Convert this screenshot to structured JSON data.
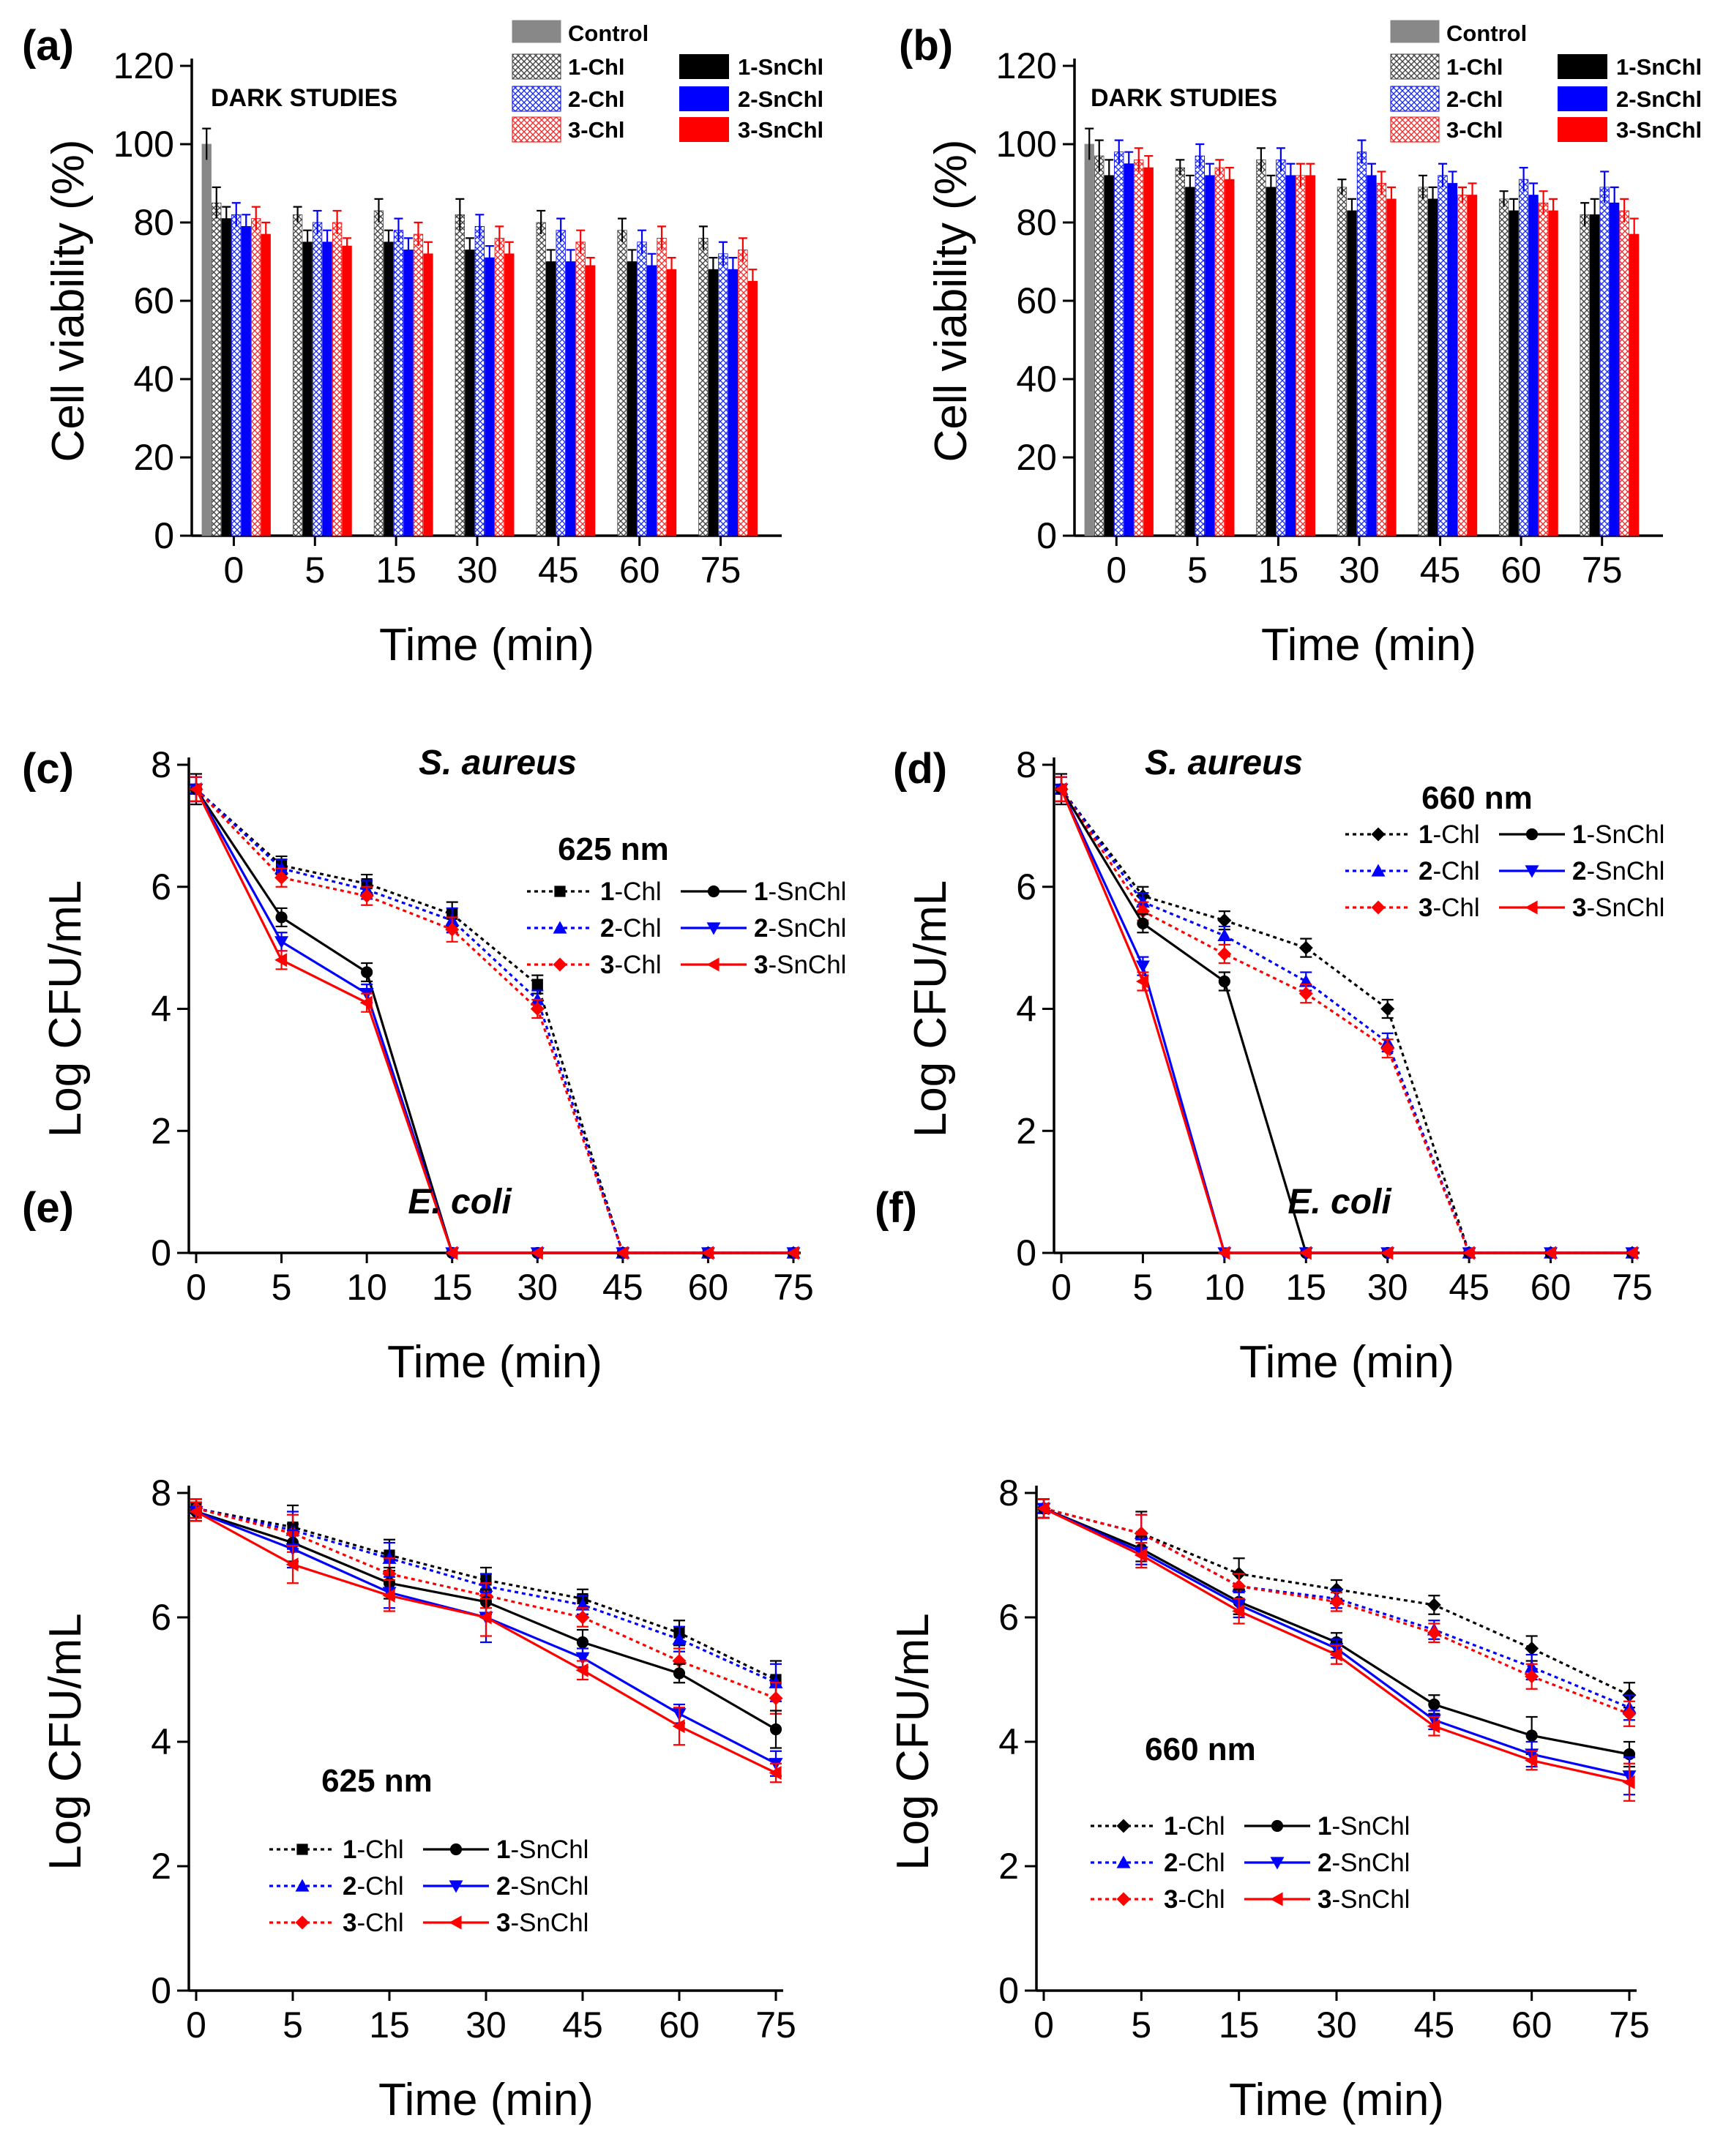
{
  "colors": {
    "control": "#888888",
    "chl1_fill": "#bdbdbd",
    "chl2_fill": "#aab0ff",
    "chl3_fill": "#ffb3b3",
    "sn1": "#000000",
    "sn2": "#0000ff",
    "sn3": "#ff0000"
  },
  "legend_labels": {
    "control": "Control",
    "chl1": "1-Chl",
    "chl2": "2-Chl",
    "chl3": "3-Chl",
    "sn1": "1-SnChl",
    "sn2": "2-SnChl",
    "sn3": "3-SnChl"
  },
  "chart_data": [
    {
      "id": "a",
      "panel_label": "(a)",
      "type": "bar",
      "annotation": "DARK STUDIES",
      "xlabel": "Time (min)",
      "ylabel": "Cell viability (%)",
      "ylim": [
        0,
        120
      ],
      "yticks": [
        0,
        20,
        40,
        60,
        80,
        100,
        120
      ],
      "categories": [
        "0",
        "5",
        "15",
        "30",
        "45",
        "60",
        "75"
      ],
      "series": [
        {
          "name": "Control",
          "key": "control",
          "values": [
            100,
            null,
            null,
            null,
            null,
            null,
            null
          ],
          "err": [
            4,
            0,
            0,
            0,
            0,
            0,
            0
          ]
        },
        {
          "name": "1-Chl",
          "key": "chl1",
          "values": [
            85,
            82,
            83,
            82,
            80,
            78,
            76
          ],
          "err": [
            4,
            2,
            3,
            4,
            3,
            3,
            3
          ]
        },
        {
          "name": "1-SnChl",
          "key": "sn1",
          "values": [
            81,
            75,
            75,
            73,
            70,
            70,
            68
          ],
          "err": [
            3,
            3,
            3,
            3,
            3,
            3,
            3
          ]
        },
        {
          "name": "2-Chl",
          "key": "chl2",
          "values": [
            82,
            80,
            78,
            79,
            78,
            75,
            72
          ],
          "err": [
            3,
            3,
            3,
            3,
            3,
            3,
            3
          ]
        },
        {
          "name": "2-SnChl",
          "key": "sn2",
          "values": [
            79,
            75,
            73,
            71,
            70,
            69,
            68
          ],
          "err": [
            3,
            3,
            3,
            3,
            3,
            3,
            3
          ]
        },
        {
          "name": "3-Chl",
          "key": "chl3",
          "values": [
            81,
            80,
            77,
            76,
            75,
            76,
            73
          ],
          "err": [
            3,
            3,
            3,
            3,
            3,
            3,
            3
          ]
        },
        {
          "name": "3-SnChl",
          "key": "sn3",
          "values": [
            77,
            74,
            72,
            72,
            69,
            68,
            65
          ],
          "err": [
            3,
            2,
            3,
            3,
            2,
            3,
            3
          ]
        }
      ]
    },
    {
      "id": "b",
      "panel_label": "(b)",
      "type": "bar",
      "annotation": "DARK STUDIES",
      "xlabel": "Time (min)",
      "ylabel": "Cell viability (%)",
      "ylim": [
        0,
        120
      ],
      "yticks": [
        0,
        20,
        40,
        60,
        80,
        100,
        120
      ],
      "categories": [
        "0",
        "5",
        "15",
        "30",
        "45",
        "60",
        "75"
      ],
      "series": [
        {
          "name": "Control",
          "key": "control",
          "values": [
            100,
            null,
            null,
            null,
            null,
            null,
            null
          ],
          "err": [
            4,
            0,
            0,
            0,
            0,
            0,
            0
          ]
        },
        {
          "name": "1-Chl",
          "key": "chl1",
          "values": [
            97,
            94,
            96,
            89,
            89,
            86,
            82
          ],
          "err": [
            4,
            2,
            3,
            2,
            3,
            2,
            3
          ]
        },
        {
          "name": "1-SnChl",
          "key": "sn1",
          "values": [
            92,
            89,
            89,
            83,
            86,
            83,
            82
          ],
          "err": [
            4,
            3,
            3,
            3,
            3,
            3,
            4
          ]
        },
        {
          "name": "2-Chl",
          "key": "chl2",
          "values": [
            98,
            97,
            96,
            98,
            92,
            91,
            89
          ],
          "err": [
            3,
            3,
            3,
            3,
            3,
            3,
            4
          ]
        },
        {
          "name": "2-SnChl",
          "key": "sn2",
          "values": [
            95,
            92,
            92,
            92,
            90,
            87,
            85
          ],
          "err": [
            3,
            3,
            3,
            3,
            3,
            3,
            4
          ]
        },
        {
          "name": "3-Chl",
          "key": "chl3",
          "values": [
            96,
            94,
            92,
            90,
            87,
            85,
            83
          ],
          "err": [
            3,
            2,
            3,
            3,
            2,
            3,
            3
          ]
        },
        {
          "name": "3-SnChl",
          "key": "sn3",
          "values": [
            94,
            91,
            92,
            86,
            87,
            83,
            77
          ],
          "err": [
            3,
            3,
            3,
            3,
            3,
            3,
            4
          ]
        }
      ]
    },
    {
      "id": "c",
      "panel_label": "(c)",
      "type": "line",
      "title": "S. aureus",
      "annotation": "625 nm",
      "xlabel": "Time (min)",
      "ylabel": "Log  CFU/mL",
      "ylim": [
        0,
        8
      ],
      "yticks": [
        0,
        2,
        4,
        6,
        8
      ],
      "x": [
        0,
        5,
        10,
        15,
        30,
        45,
        60,
        75
      ],
      "series": [
        {
          "name": "1-Chl",
          "key": "chl1",
          "marker": "square",
          "style": "dotted",
          "values": [
            7.6,
            6.35,
            6.05,
            5.55,
            4.4,
            0,
            0,
            0
          ],
          "err": [
            0.25,
            0.15,
            0.15,
            0.2,
            0.15,
            0,
            0,
            0
          ]
        },
        {
          "name": "2-Chl",
          "key": "chl2",
          "marker": "triangle-up",
          "style": "dotted",
          "values": [
            7.6,
            6.3,
            5.95,
            5.45,
            4.15,
            0,
            0,
            0
          ],
          "err": [
            0.2,
            0.15,
            0.15,
            0.2,
            0.15,
            0,
            0,
            0
          ]
        },
        {
          "name": "3-Chl",
          "key": "chl3",
          "marker": "diamond",
          "style": "dotted",
          "values": [
            7.6,
            6.15,
            5.85,
            5.3,
            4.0,
            0,
            0,
            0
          ],
          "err": [
            0.2,
            0.15,
            0.15,
            0.2,
            0.15,
            0,
            0,
            0
          ]
        },
        {
          "name": "1-SnChl",
          "key": "sn1",
          "marker": "circle",
          "style": "solid",
          "values": [
            7.6,
            5.5,
            4.6,
            0,
            0,
            0,
            0,
            0
          ],
          "err": [
            0.2,
            0.15,
            0.15,
            0,
            0,
            0,
            0,
            0
          ]
        },
        {
          "name": "2-SnChl",
          "key": "sn2",
          "marker": "triangle-down",
          "style": "solid",
          "values": [
            7.6,
            5.1,
            4.25,
            0,
            0,
            0,
            0,
            0
          ],
          "err": [
            0.2,
            0.15,
            0.15,
            0,
            0,
            0,
            0,
            0
          ]
        },
        {
          "name": "3-SnChl",
          "key": "sn3",
          "marker": "triangle-left",
          "style": "solid",
          "values": [
            7.6,
            4.8,
            4.1,
            0,
            0,
            0,
            0,
            0
          ],
          "err": [
            0.2,
            0.15,
            0.15,
            0,
            0,
            0,
            0,
            0
          ]
        }
      ]
    },
    {
      "id": "d",
      "panel_label": "(d)",
      "type": "line",
      "title": "S. aureus",
      "annotation": "660 nm",
      "xlabel": "Time (min)",
      "ylabel": "Log CFU/mL",
      "ylim": [
        0,
        8
      ],
      "yticks": [
        0,
        2,
        4,
        6,
        8
      ],
      "x": [
        0,
        5,
        10,
        15,
        30,
        45,
        60,
        75
      ],
      "series": [
        {
          "name": "1-Chl",
          "key": "chl1",
          "marker": "diamond",
          "style": "dotted",
          "values": [
            7.6,
            5.85,
            5.45,
            5.0,
            4.0,
            0,
            0,
            0
          ],
          "err": [
            0.25,
            0.15,
            0.15,
            0.15,
            0.15,
            0,
            0,
            0
          ]
        },
        {
          "name": "2-Chl",
          "key": "chl2",
          "marker": "triangle-up",
          "style": "dotted",
          "values": [
            7.6,
            5.75,
            5.2,
            4.45,
            3.45,
            0,
            0,
            0
          ],
          "err": [
            0.2,
            0.15,
            0.15,
            0.15,
            0.15,
            0,
            0,
            0
          ]
        },
        {
          "name": "3-Chl",
          "key": "chl3",
          "marker": "diamond",
          "style": "dotted",
          "values": [
            7.6,
            5.6,
            4.9,
            4.25,
            3.35,
            0,
            0,
            0
          ],
          "err": [
            0.2,
            0.15,
            0.15,
            0.15,
            0.15,
            0,
            0,
            0
          ]
        },
        {
          "name": "1-SnChl",
          "key": "sn1",
          "marker": "circle",
          "style": "solid",
          "values": [
            7.6,
            5.4,
            4.45,
            0,
            0,
            0,
            0,
            0
          ],
          "err": [
            0.2,
            0.15,
            0.15,
            0,
            0,
            0,
            0,
            0
          ]
        },
        {
          "name": "2-SnChl",
          "key": "sn2",
          "marker": "triangle-down",
          "style": "solid",
          "values": [
            7.6,
            4.7,
            0,
            0,
            0,
            0,
            0,
            0
          ],
          "err": [
            0.2,
            0.15,
            0,
            0,
            0,
            0,
            0,
            0
          ]
        },
        {
          "name": "3-SnChl",
          "key": "sn3",
          "marker": "triangle-left",
          "style": "solid",
          "values": [
            7.6,
            4.45,
            0,
            0,
            0,
            0,
            0,
            0
          ],
          "err": [
            0.2,
            0.15,
            0,
            0,
            0,
            0,
            0,
            0
          ]
        }
      ]
    },
    {
      "id": "e",
      "panel_label": "(e)",
      "type": "line",
      "title": "E. coli",
      "annotation": "625 nm",
      "xlabel": "Time (min)",
      "ylabel": "Log  CFU/mL",
      "ylim": [
        0,
        8
      ],
      "yticks": [
        0,
        2,
        4,
        6,
        8
      ],
      "x": [
        0,
        5,
        15,
        30,
        45,
        60,
        75
      ],
      "series": [
        {
          "name": "1-Chl",
          "key": "chl1",
          "marker": "square",
          "style": "dotted",
          "values": [
            7.75,
            7.45,
            7.0,
            6.6,
            6.3,
            5.75,
            5.0
          ],
          "err": [
            0.15,
            0.35,
            0.25,
            0.2,
            0.15,
            0.2,
            0.3
          ]
        },
        {
          "name": "2-Chl",
          "key": "chl2",
          "marker": "triangle-up",
          "style": "dotted",
          "values": [
            7.75,
            7.4,
            6.95,
            6.5,
            6.2,
            5.65,
            4.95
          ],
          "err": [
            0.15,
            0.3,
            0.25,
            0.2,
            0.15,
            0.2,
            0.3
          ]
        },
        {
          "name": "3-Chl",
          "key": "chl3",
          "marker": "diamond",
          "style": "dotted",
          "values": [
            7.75,
            7.35,
            6.7,
            6.35,
            6.0,
            5.3,
            4.7
          ],
          "err": [
            0.15,
            0.3,
            0.25,
            0.2,
            0.15,
            0.2,
            0.25
          ]
        },
        {
          "name": "1-SnChl",
          "key": "sn1",
          "marker": "circle",
          "style": "solid",
          "values": [
            7.7,
            7.2,
            6.55,
            6.25,
            5.6,
            5.1,
            4.2
          ],
          "err": [
            0.15,
            0.3,
            0.25,
            0.2,
            0.2,
            0.15,
            0.3
          ]
        },
        {
          "name": "2-SnChl",
          "key": "sn2",
          "marker": "triangle-down",
          "style": "solid",
          "values": [
            7.7,
            7.1,
            6.4,
            6.0,
            5.35,
            4.45,
            3.65
          ],
          "err": [
            0.15,
            0.3,
            0.25,
            0.4,
            0.15,
            0.15,
            0.2
          ]
        },
        {
          "name": "3-SnChl",
          "key": "sn3",
          "marker": "triangle-left",
          "style": "solid",
          "values": [
            7.7,
            6.85,
            6.35,
            6.0,
            5.15,
            4.25,
            3.5
          ],
          "err": [
            0.15,
            0.3,
            0.25,
            0.3,
            0.15,
            0.3,
            0.15
          ]
        }
      ]
    },
    {
      "id": "f",
      "panel_label": "(f)",
      "type": "line",
      "title": "E. coli",
      "annotation": "660 nm",
      "xlabel": "Time (min)",
      "ylabel": "Log CFU/mL",
      "ylim": [
        0,
        8
      ],
      "yticks": [
        0,
        2,
        4,
        6,
        8
      ],
      "x": [
        0,
        5,
        15,
        30,
        45,
        60,
        75
      ],
      "series": [
        {
          "name": "1-Chl",
          "key": "chl1",
          "marker": "diamond",
          "style": "dotted",
          "values": [
            7.75,
            7.35,
            6.7,
            6.45,
            6.2,
            5.5,
            4.75
          ],
          "err": [
            0.15,
            0.35,
            0.25,
            0.15,
            0.15,
            0.2,
            0.2
          ]
        },
        {
          "name": "2-Chl",
          "key": "chl2",
          "marker": "triangle-up",
          "style": "dotted",
          "values": [
            7.75,
            7.35,
            6.5,
            6.3,
            5.8,
            5.2,
            4.55
          ],
          "err": [
            0.15,
            0.3,
            0.2,
            0.15,
            0.15,
            0.2,
            0.2
          ]
        },
        {
          "name": "3-Chl",
          "key": "chl3",
          "marker": "diamond",
          "style": "dotted",
          "values": [
            7.75,
            7.35,
            6.5,
            6.25,
            5.75,
            5.05,
            4.45
          ],
          "err": [
            0.15,
            0.3,
            0.2,
            0.15,
            0.15,
            0.2,
            0.2
          ]
        },
        {
          "name": "1-SnChl",
          "key": "sn1",
          "marker": "circle",
          "style": "solid",
          "values": [
            7.75,
            7.1,
            6.25,
            5.6,
            4.6,
            4.1,
            3.8
          ],
          "err": [
            0.15,
            0.2,
            0.2,
            0.15,
            0.15,
            0.3,
            0.2
          ]
        },
        {
          "name": "2-SnChl",
          "key": "sn2",
          "marker": "triangle-down",
          "style": "solid",
          "values": [
            7.75,
            7.05,
            6.2,
            5.5,
            4.35,
            3.8,
            3.45
          ],
          "err": [
            0.15,
            0.2,
            0.2,
            0.15,
            0.15,
            0.2,
            0.3
          ]
        },
        {
          "name": "3-SnChl",
          "key": "sn3",
          "marker": "triangle-left",
          "style": "solid",
          "values": [
            7.75,
            7.0,
            6.1,
            5.4,
            4.25,
            3.7,
            3.35
          ],
          "err": [
            0.15,
            0.2,
            0.2,
            0.15,
            0.15,
            0.15,
            0.3
          ]
        }
      ]
    }
  ]
}
